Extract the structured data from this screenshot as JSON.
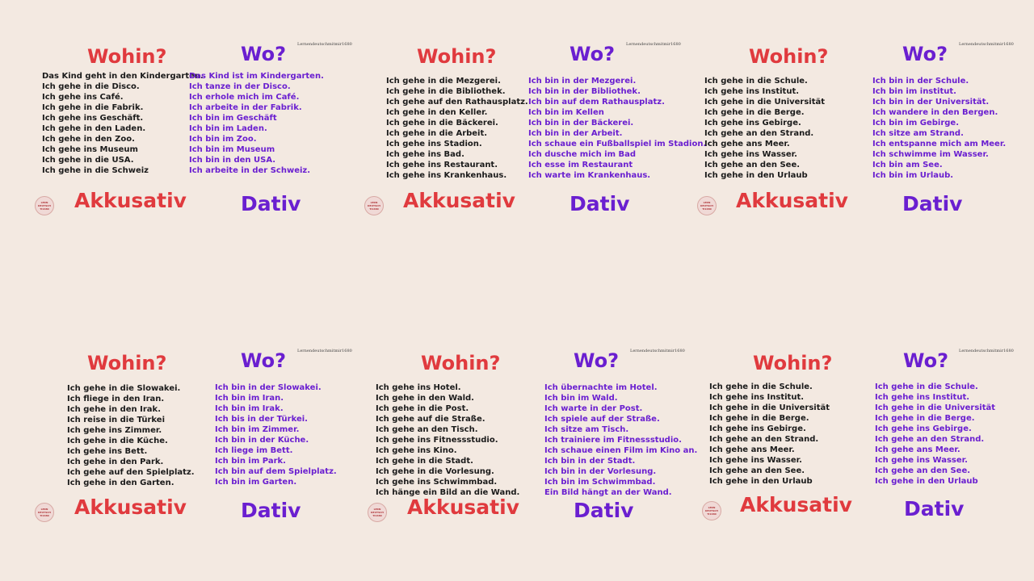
{
  "headings": {
    "wohin": "Wohin?",
    "wo": "Wo?",
    "akkusativ": "Akkusativ",
    "dativ": "Dativ"
  },
  "watermark": "Lernendeutschmitmir1680",
  "logo_lines": [
    "LERN",
    "DEUTSCH",
    "TI1680"
  ],
  "colors": {
    "background": "#f3e9e1",
    "red": "#e03a3e",
    "purple": "#6a1fd0",
    "text": "#1b1b1b"
  },
  "panels": [
    {
      "akkusativ": [
        "Das Kind geht in den Kindergarten.",
        "Ich gehe in die Disco.",
        "Ich gehe ins Café.",
        "Ich gehe in die Fabrik.",
        "Ich gehe ins Geschäft.",
        "Ich gehe in den Laden.",
        "Ich gehe in den Zoo.",
        "Ich gehe ins Museum",
        "Ich gehe in die USA.",
        "Ich gehe in die Schweiz"
      ],
      "dativ": [
        "Das Kind ist im Kindergarten.",
        "Ich tanze in der Disco.",
        "Ich erhole mich im Café.",
        "Ich arbeite in der Fabrik.",
        "Ich bin im Geschäft",
        "Ich bin im Laden.",
        "Ich bin im Zoo.",
        "Ich bin im Museum",
        "Ich bin in den USA.",
        "Ich arbeite in der Schweiz."
      ]
    },
    {
      "akkusativ": [
        "Ich gehe in die  Mezgerei.",
        "Ich gehe in die Bibliothek.",
        "Ich gehe auf den Rathausplatz.",
        "Ich gehe in den Keller.",
        "Ich gehe in die Bäckerei.",
        "Ich gehe in die Arbeit.",
        "Ich gehe ins Stadion.",
        "Ich gehe ins Bad.",
        "Ich gehe ins Restaurant.",
        "Ich gehe ins Krankenhaus."
      ],
      "dativ": [
        "Ich bin in der  Mezgerei.",
        "Ich bin in der Bibliothek.",
        "Ich bin auf dem Rathausplatz.",
        "Ich bin im Kellen",
        "Ich bin in der Bäckerei.",
        "Ich bin in der Arbeit.",
        "Ich schaue ein Fußballspiel im Stadion.",
        "Ich dusche mich im Bad",
        "Ich esse im Restaurant",
        "Ich warte im Krankenhaus."
      ]
    },
    {
      "akkusativ": [
        "Ich gehe in die Schule.",
        "Ich gehe ins Institut.",
        "Ich gehe in die Universität",
        "Ich gehe in die Berge.",
        "Ich gehe ins Gebirge.",
        "Ich gehe an den Strand.",
        "Ich gehe ans Meer.",
        "Ich gehe ins Wasser.",
        "Ich gehe an den See.",
        "Ich gehe in den Urlaub"
      ],
      "dativ": [
        "Ich bin in der Schule.",
        "Ich bin im institut.",
        "Ich bin in der Universität.",
        "Ich wandere in den Bergen.",
        "Ich bin im Gebirge.",
        "Ich sitze am Strand.",
        "Ich entspanne mich am Meer.",
        "Ich schwimme im Wasser.",
        "Ich bin am See.",
        "Ich bin im Urlaub."
      ]
    },
    {
      "akkusativ": [
        "Ich gehe in die Slowakei.",
        "Ich fliege in den Iran.",
        "Ich gehe in den Irak.",
        "Ich reise in die Türkei",
        "Ich gehe ins Zimmer.",
        "Ich gehe in die Küche.",
        "Ich gehe ins Bett.",
        "Ich gehe in den Park.",
        "Ich gehe auf den Spielplatz.",
        "Ich gehe in den Garten."
      ],
      "dativ": [
        "Ich bin in der Slowakei.",
        "Ich bin im Iran.",
        "Ich bin im Irak.",
        "Ich bis in der Türkei.",
        "Ich bin im Zimmer.",
        "Ich bin in der Küche.",
        "Ich liege im Bett.",
        "Ich bin im Park.",
        "Ich bin auf dem Spielplatz.",
        "Ich bin im Garten."
      ]
    },
    {
      "akkusativ": [
        "Ich gehe ins Hotel.",
        "Ich gehe in den Wald.",
        "Ich gehe in die Post.",
        "Ich gehe auf die Straße.",
        "Ich gehe an den Tisch.",
        "Ich gehe ins Fitnessstudio.",
        "Ich gehe ins Kino.",
        "Ich gehe in die Stadt.",
        "Ich gehe in die Vorlesung.",
        "Ich gehe ins Schwimmbad.",
        "Ich hänge ein Bild an die Wand."
      ],
      "dativ": [
        "Ich übernachte im Hotel.",
        "Ich bin im Wald.",
        "Ich warte in der Post.",
        "Ich spiele auf der Straße.",
        "Ich sitze am Tisch.",
        "Ich trainiere im Fitnessstudio.",
        "Ich schaue einen Film im Kino an.",
        "Ich bin in der Stadt.",
        "Ich bin in der Vorlesung.",
        "Ich bin im Schwimmbad.",
        "Ein Bild hängt an der Wand."
      ]
    },
    {
      "akkusativ": [
        "Ich gehe in die Schule.",
        "Ich gehe ins Institut.",
        "Ich gehe in die Universität",
        "Ich gehe in die Berge.",
        "Ich gehe ins Gebirge.",
        "Ich gehe an den Strand.",
        "Ich gehe ans Meer.",
        "Ich gehe ins Wasser.",
        "Ich gehe an den See.",
        "Ich gehe in den Urlaub"
      ],
      "dativ": [
        "Ich gehe in die Schule.",
        "Ich gehe ins Institut.",
        "Ich gehe in die Universität",
        "Ich gehe in die Berge.",
        "Ich gehe ins Gebirge.",
        "Ich gehe an den Strand.",
        "Ich gehe ans Meer.",
        "Ich gehe ins Wasser.",
        "Ich gehe an den See.",
        "Ich gehe in den Urlaub"
      ]
    }
  ]
}
